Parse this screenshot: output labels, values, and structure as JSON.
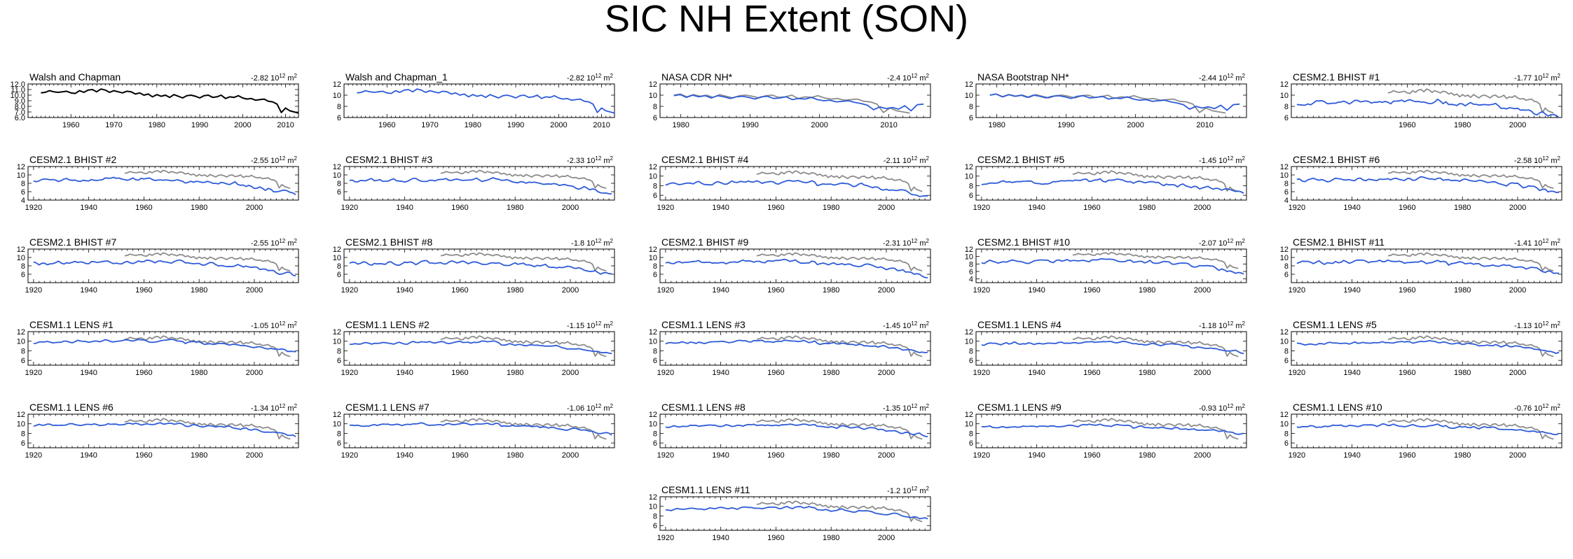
{
  "title": "SIC NH Extent (SON)",
  "colors": {
    "model": "#2e5bd8",
    "obs": "#8c8c8c",
    "black": "#000000"
  },
  "trend_unit": "10^12 m^2",
  "chart_data": [
    {
      "type": "line",
      "panel_title": "Walsh and Chapman",
      "trend": "-2.82",
      "xlim": [
        1950,
        2013
      ],
      "ylim": [
        6,
        12
      ],
      "yticks": [
        6.0,
        7.0,
        8.0,
        9.0,
        10.0,
        11.0,
        12.0
      ],
      "ytick_decimals": 1,
      "xticks": [
        1960,
        1970,
        1980,
        1990,
        2000,
        2010
      ],
      "series": [
        {
          "name": "Walsh and Chapman",
          "color": "black",
          "x_start": 1953,
          "x_end": 2013,
          "values": [
            10.4,
            10.5,
            10.8,
            10.6,
            10.5,
            10.6,
            10.7,
            10.4,
            10.3,
            10.8,
            10.5,
            10.9,
            11.0,
            10.6,
            11.1,
            10.9,
            10.5,
            10.8,
            10.6,
            10.4,
            10.7,
            10.6,
            10.2,
            10.4,
            10.0,
            10.2,
            9.7,
            10.1,
            9.8,
            10.0,
            9.6,
            10.1,
            9.8,
            9.5,
            9.9,
            10.0,
            9.8,
            9.5,
            9.9,
            10.0,
            9.6,
            9.7,
            10.0,
            9.4,
            9.7,
            9.6,
            9.9,
            9.5,
            9.3,
            9.4,
            9.1,
            9.2,
            9.3,
            8.9,
            8.8,
            8.4,
            6.9,
            7.7,
            7.2,
            7.0,
            6.8
          ]
        }
      ]
    },
    {
      "type": "line",
      "panel_title": "Walsh and Chapman_1",
      "trend": "-2.82",
      "xlim": [
        1950,
        2013
      ],
      "ylim": [
        6,
        12
      ],
      "yticks": [
        6,
        8,
        10,
        12
      ],
      "ytick_decimals": 0,
      "xticks": [
        1960,
        1970,
        1980,
        1990,
        2000,
        2010
      ],
      "series": [
        {
          "name": "Walsh and Chapman_1",
          "color": "model",
          "x_start": 1953,
          "x_end": 2013,
          "values": [
            10.4,
            10.5,
            10.8,
            10.6,
            10.5,
            10.6,
            10.7,
            10.4,
            10.3,
            10.8,
            10.5,
            10.9,
            11.0,
            10.6,
            11.1,
            10.9,
            10.5,
            10.8,
            10.6,
            10.4,
            10.7,
            10.6,
            10.2,
            10.4,
            10.0,
            10.2,
            9.7,
            10.1,
            9.8,
            10.0,
            9.6,
            10.1,
            9.8,
            9.5,
            9.9,
            10.0,
            9.8,
            9.5,
            9.9,
            10.0,
            9.6,
            9.7,
            10.0,
            9.4,
            9.7,
            9.6,
            9.9,
            9.5,
            9.3,
            9.4,
            9.1,
            9.2,
            9.3,
            8.9,
            8.8,
            8.4,
            6.9,
            7.7,
            7.2,
            7.0,
            6.8
          ]
        }
      ]
    },
    {
      "type": "line",
      "panel_title": "NASA CDR NH*",
      "trend": "-2.4",
      "xlim": [
        1977,
        2016
      ],
      "ylim": [
        6,
        12
      ],
      "yticks": [
        6,
        8,
        10,
        12
      ],
      "ytick_decimals": 0,
      "xticks": [
        1980,
        1990,
        2000,
        2010
      ],
      "series": [
        {
          "name": "Walsh and Chapman",
          "color": "obs",
          "x_start": 1979,
          "x_end": 2013,
          "values": [
            10.0,
            10.2,
            9.7,
            10.1,
            9.8,
            10.0,
            9.6,
            10.1,
            9.8,
            9.5,
            9.9,
            10.0,
            9.8,
            9.5,
            9.9,
            10.0,
            9.6,
            9.7,
            10.0,
            9.4,
            9.7,
            9.6,
            9.9,
            9.5,
            9.3,
            9.4,
            9.1,
            9.2,
            9.3,
            8.9,
            8.8,
            8.4,
            6.9,
            7.7,
            7.2,
            7.0,
            6.8
          ]
        },
        {
          "name": "NASA CDR NH*",
          "color": "model",
          "x_start": 1979,
          "x_end": 2015,
          "values": [
            9.9,
            10.1,
            9.6,
            10.0,
            9.7,
            9.9,
            9.5,
            9.9,
            9.7,
            9.4,
            9.7,
            9.8,
            9.6,
            9.3,
            9.7,
            9.8,
            9.4,
            9.5,
            9.7,
            9.2,
            9.4,
            9.3,
            9.6,
            9.2,
            9.0,
            9.1,
            8.8,
            8.9,
            9.0,
            8.7,
            8.5,
            8.2,
            7.4,
            7.9,
            7.6,
            7.8,
            7.5,
            8.1,
            7.2,
            8.3,
            8.4
          ]
        }
      ]
    },
    {
      "type": "line",
      "panel_title": "NASA Bootstrap NH*",
      "trend": "-2.44",
      "xlim": [
        1977,
        2016
      ],
      "ylim": [
        6,
        12
      ],
      "yticks": [
        6,
        8,
        10,
        12
      ],
      "ytick_decimals": 0,
      "xticks": [
        1980,
        1990,
        2000,
        2010
      ],
      "series": [
        {
          "name": "Walsh and Chapman",
          "color": "obs",
          "x_start": 1979,
          "x_end": 2013,
          "values": [
            10.0,
            10.2,
            9.7,
            10.1,
            9.8,
            10.0,
            9.6,
            10.1,
            9.8,
            9.5,
            9.9,
            10.0,
            9.8,
            9.5,
            9.9,
            10.0,
            9.6,
            9.7,
            10.0,
            9.4,
            9.7,
            9.6,
            9.9,
            9.5,
            9.3,
            9.4,
            9.1,
            9.2,
            9.3,
            8.9,
            8.8,
            8.4,
            6.9,
            7.7,
            7.2,
            7.0,
            6.8
          ]
        },
        {
          "name": "NASA Bootstrap NH*",
          "color": "model",
          "x_start": 1979,
          "x_end": 2015,
          "values": [
            10.0,
            10.2,
            9.7,
            10.1,
            9.8,
            10.0,
            9.6,
            10.0,
            9.8,
            9.5,
            9.8,
            9.9,
            9.7,
            9.4,
            9.8,
            9.9,
            9.5,
            9.6,
            9.8,
            9.3,
            9.5,
            9.4,
            9.7,
            9.3,
            9.1,
            9.2,
            8.9,
            9.0,
            9.1,
            8.8,
            8.6,
            8.3,
            7.5,
            8.0,
            7.7,
            7.9,
            7.6,
            8.2,
            7.3,
            8.3,
            8.4
          ]
        }
      ]
    },
    {
      "type": "line",
      "panel_title": "CESM2.1 BHIST #1",
      "trend": "-1.77",
      "xlim": [
        1918,
        2016
      ],
      "ylim": [
        6,
        12
      ],
      "yticks": [
        6,
        8,
        10,
        12
      ],
      "ytick_decimals": 0,
      "xticks": [
        1960,
        1980,
        2000
      ],
      "seed": 1,
      "base": 8.5,
      "end_drop": 2.5,
      "noise": 0.55
    },
    {
      "type": "line",
      "panel_title": "CESM2.1 BHIST #2",
      "trend": "-2.55",
      "xlim": [
        1918,
        2016
      ],
      "ylim": [
        4,
        12
      ],
      "yticks": [
        4,
        6,
        8,
        10,
        12
      ],
      "ytick_decimals": 0,
      "xticks": [
        1920,
        1940,
        1960,
        1980,
        2000
      ],
      "seed": 2,
      "base": 8.6,
      "end_drop": 3.4,
      "noise": 0.6
    },
    {
      "type": "line",
      "panel_title": "CESM2.1 BHIST #3",
      "trend": "-2.33",
      "xlim": [
        1918,
        2016
      ],
      "ylim": [
        4,
        12
      ],
      "yticks": [
        6,
        8,
        10,
        12
      ],
      "ytick_decimals": 0,
      "xticks": [
        1920,
        1940,
        1960,
        1980,
        2000
      ],
      "seed": 3,
      "base": 8.5,
      "end_drop": 3.0,
      "noise": 0.55
    },
    {
      "type": "line",
      "panel_title": "CESM2.1 BHIST #4",
      "trend": "-2.11",
      "xlim": [
        1918,
        2016
      ],
      "ylim": [
        5,
        12
      ],
      "yticks": [
        6,
        8,
        10,
        12
      ],
      "ytick_decimals": 0,
      "xticks": [
        1920,
        1940,
        1960,
        1980,
        2000
      ],
      "seed": 4,
      "base": 8.4,
      "end_drop": 2.6,
      "noise": 0.55
    },
    {
      "type": "line",
      "panel_title": "CESM2.1 BHIST #5",
      "trend": "-1.45",
      "xlim": [
        1918,
        2016
      ],
      "ylim": [
        5,
        12
      ],
      "yticks": [
        6,
        8,
        10,
        12
      ],
      "ytick_decimals": 0,
      "xticks": [
        1920,
        1940,
        1960,
        1980,
        2000
      ],
      "seed": 5,
      "base": 8.5,
      "end_drop": 2.1,
      "noise": 0.55
    },
    {
      "type": "line",
      "panel_title": "CESM2.1 BHIST #6",
      "trend": "-2.58",
      "xlim": [
        1918,
        2016
      ],
      "ylim": [
        4,
        12
      ],
      "yticks": [
        4,
        6,
        8,
        10,
        12
      ],
      "ytick_decimals": 0,
      "xticks": [
        1920,
        1940,
        1960,
        1980,
        2000
      ],
      "seed": 6,
      "base": 8.7,
      "end_drop": 3.0,
      "noise": 0.6
    },
    {
      "type": "line",
      "panel_title": "CESM2.1 BHIST #7",
      "trend": "-2.55",
      "xlim": [
        1918,
        2016
      ],
      "ylim": [
        4,
        12
      ],
      "yticks": [
        6,
        8,
        10,
        12
      ],
      "ytick_decimals": 0,
      "xticks": [
        1920,
        1940,
        1960,
        1980,
        2000
      ],
      "seed": 7,
      "base": 8.6,
      "end_drop": 3.0,
      "noise": 0.6
    },
    {
      "type": "line",
      "panel_title": "CESM2.1 BHIST #8",
      "trend": "-1.8",
      "xlim": [
        1918,
        2016
      ],
      "ylim": [
        4,
        12
      ],
      "yticks": [
        6,
        8,
        10,
        12
      ],
      "ytick_decimals": 0,
      "xticks": [
        1920,
        1940,
        1960,
        1980,
        2000
      ],
      "seed": 8,
      "base": 8.4,
      "end_drop": 2.5,
      "noise": 0.55
    },
    {
      "type": "line",
      "panel_title": "CESM2.1 BHIST #9",
      "trend": "-2.31",
      "xlim": [
        1918,
        2016
      ],
      "ylim": [
        4,
        12
      ],
      "yticks": [
        6,
        8,
        10,
        12
      ],
      "ytick_decimals": 0,
      "xticks": [
        1920,
        1940,
        1960,
        1980,
        2000
      ],
      "seed": 9,
      "base": 8.7,
      "end_drop": 3.3,
      "noise": 0.55
    },
    {
      "type": "line",
      "panel_title": "CESM2.1 BHIST #10",
      "trend": "-2.07",
      "xlim": [
        1918,
        2016
      ],
      "ylim": [
        3,
        12
      ],
      "yticks": [
        4,
        6,
        8,
        10,
        12
      ],
      "ytick_decimals": 0,
      "xticks": [
        1920,
        1940,
        1960,
        1980,
        2000
      ],
      "seed": 10,
      "base": 8.5,
      "end_drop": 3.0,
      "noise": 0.6
    },
    {
      "type": "line",
      "panel_title": "CESM2.1 BHIST #11",
      "trend": "-1.41",
      "xlim": [
        1918,
        2016
      ],
      "ylim": [
        4,
        12
      ],
      "yticks": [
        6,
        8,
        10,
        12
      ],
      "ytick_decimals": 0,
      "xticks": [
        1920,
        1940,
        1960,
        1980,
        2000
      ],
      "seed": 11,
      "base": 8.6,
      "end_drop": 2.2,
      "noise": 0.55
    },
    {
      "type": "line",
      "panel_title": "CESM1.1 LENS #1",
      "trend": "-1.05",
      "xlim": [
        1918,
        2016
      ],
      "ylim": [
        5,
        12
      ],
      "yticks": [
        6,
        8,
        10,
        12
      ],
      "ytick_decimals": 0,
      "xticks": [
        1920,
        1940,
        1960,
        1980,
        2000
      ],
      "seed": 12,
      "base": 9.7,
      "end_drop": 1.9,
      "noise": 0.35
    },
    {
      "type": "line",
      "panel_title": "CESM1.1 LENS #2",
      "trend": "-1.15",
      "xlim": [
        1918,
        2016
      ],
      "ylim": [
        5,
        12
      ],
      "yticks": [
        6,
        8,
        10,
        12
      ],
      "ytick_decimals": 0,
      "xticks": [
        1920,
        1940,
        1960,
        1980,
        2000
      ],
      "seed": 13,
      "base": 9.4,
      "end_drop": 2.2,
      "noise": 0.3
    },
    {
      "type": "line",
      "panel_title": "CESM1.1 LENS #3",
      "trend": "-1.45",
      "xlim": [
        1918,
        2016
      ],
      "ylim": [
        5,
        12
      ],
      "yticks": [
        6,
        8,
        10,
        12
      ],
      "ytick_decimals": 0,
      "xticks": [
        1920,
        1940,
        1960,
        1980,
        2000
      ],
      "seed": 14,
      "base": 9.6,
      "end_drop": 2.0,
      "noise": 0.35
    },
    {
      "type": "line",
      "panel_title": "CESM1.1 LENS #4",
      "trend": "-1.18",
      "xlim": [
        1918,
        2016
      ],
      "ylim": [
        5,
        12
      ],
      "yticks": [
        6,
        8,
        10,
        12
      ],
      "ytick_decimals": 0,
      "xticks": [
        1920,
        1940,
        1960,
        1980,
        2000
      ],
      "seed": 15,
      "base": 9.4,
      "end_drop": 1.7,
      "noise": 0.35
    },
    {
      "type": "line",
      "panel_title": "CESM1.1 LENS #5",
      "trend": "-1.13",
      "xlim": [
        1918,
        2016
      ],
      "ylim": [
        5,
        12
      ],
      "yticks": [
        6,
        8,
        10,
        12
      ],
      "ytick_decimals": 0,
      "xticks": [
        1920,
        1940,
        1960,
        1980,
        2000
      ],
      "seed": 16,
      "base": 9.4,
      "end_drop": 1.8,
      "noise": 0.35
    },
    {
      "type": "line",
      "panel_title": "CESM1.1 LENS #6",
      "trend": "-1.34",
      "xlim": [
        1918,
        2016
      ],
      "ylim": [
        5,
        12
      ],
      "yticks": [
        6,
        8,
        10,
        12
      ],
      "ytick_decimals": 0,
      "xticks": [
        1920,
        1940,
        1960,
        1980,
        2000
      ],
      "seed": 17,
      "base": 9.6,
      "end_drop": 2.2,
      "noise": 0.35
    },
    {
      "type": "line",
      "panel_title": "CESM1.1 LENS #7",
      "trend": "-1.06",
      "xlim": [
        1918,
        2016
      ],
      "ylim": [
        5,
        12
      ],
      "yticks": [
        6,
        8,
        10,
        12
      ],
      "ytick_decimals": 0,
      "xticks": [
        1920,
        1940,
        1960,
        1980,
        2000
      ],
      "seed": 18,
      "base": 9.6,
      "end_drop": 1.9,
      "noise": 0.35
    },
    {
      "type": "line",
      "panel_title": "CESM1.1 LENS #8",
      "trend": "-1.35",
      "xlim": [
        1918,
        2016
      ],
      "ylim": [
        5,
        12
      ],
      "yticks": [
        6,
        8,
        10,
        12
      ],
      "ytick_decimals": 0,
      "xticks": [
        1920,
        1940,
        1960,
        1980,
        2000
      ],
      "seed": 19,
      "base": 9.4,
      "end_drop": 1.9,
      "noise": 0.35
    },
    {
      "type": "line",
      "panel_title": "CESM1.1 LENS #9",
      "trend": "-0.93",
      "xlim": [
        1918,
        2016
      ],
      "ylim": [
        5,
        12
      ],
      "yticks": [
        6,
        8,
        10,
        12
      ],
      "ytick_decimals": 0,
      "xticks": [
        1920,
        1940,
        1960,
        1980,
        2000
      ],
      "seed": 20,
      "base": 9.3,
      "end_drop": 1.3,
      "noise": 0.35
    },
    {
      "type": "line",
      "panel_title": "CESM1.1 LENS #10",
      "trend": "-0.76",
      "xlim": [
        1918,
        2016
      ],
      "ylim": [
        5,
        12
      ],
      "yticks": [
        6,
        8,
        10,
        12
      ],
      "ytick_decimals": 0,
      "xticks": [
        1920,
        1940,
        1960,
        1980,
        2000
      ],
      "seed": 21,
      "base": 9.3,
      "end_drop": 1.4,
      "noise": 0.35
    },
    {
      "type": "line",
      "panel_title": "CESM1.1 LENS #11",
      "trend": "-1.2",
      "xlim": [
        1918,
        2016
      ],
      "ylim": [
        5,
        12
      ],
      "yticks": [
        6,
        8,
        10,
        12
      ],
      "ytick_decimals": 0,
      "xticks": [
        1920,
        1940,
        1960,
        1980,
        2000
      ],
      "seed": 22,
      "base": 9.3,
      "end_drop": 2.0,
      "noise": 0.35
    }
  ]
}
